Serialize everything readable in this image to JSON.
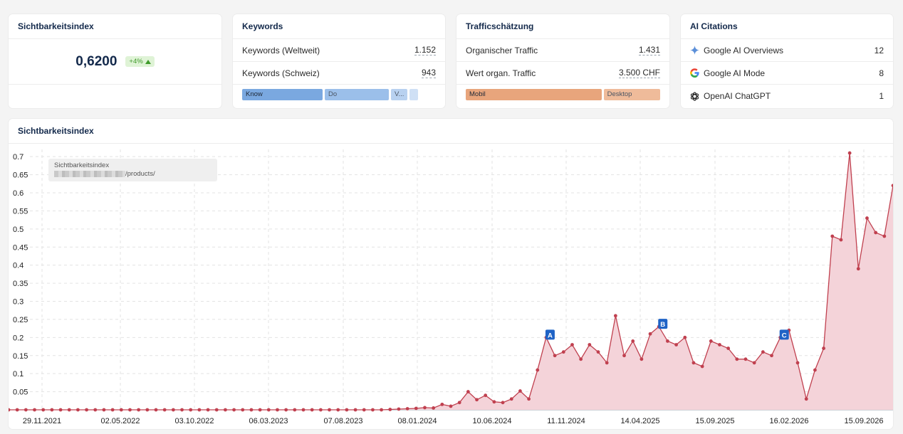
{
  "cards": {
    "visibility": {
      "title": "Sichtbarkeitsindex",
      "value": "0,6200",
      "change": "+4%"
    },
    "keywords": {
      "title": "Keywords",
      "rows": [
        {
          "label": "Keywords (Weltweit)",
          "value": "1.152"
        },
        {
          "label": "Keywords (Schweiz)",
          "value": "943"
        }
      ],
      "intents": [
        {
          "label": "Know",
          "share": 0.415,
          "color": "#7aa8e0"
        },
        {
          "label": "Do",
          "share": 0.33,
          "color": "#9bbfea"
        },
        {
          "label": "V...",
          "share": 0.085,
          "color": "#b8d1f0"
        },
        {
          "label": "",
          "share": 0.045,
          "color": "#cfe0f5"
        }
      ]
    },
    "traffic": {
      "title": "Trafficschätzung",
      "rows": [
        {
          "label": "Organischer Traffic",
          "value": "1.431"
        },
        {
          "label": "Wert organ. Traffic",
          "value": "3.500 CHF"
        }
      ],
      "devices": [
        {
          "label": "Mobil",
          "share": 0.705,
          "color": "#e8a57c"
        },
        {
          "label": "Desktop",
          "share": 0.295,
          "color": "#efbb9a"
        }
      ]
    },
    "ai": {
      "title": "AI Citations",
      "rows": [
        {
          "label": "Google AI Overviews",
          "value": "12",
          "icon": "sparkle-icon"
        },
        {
          "label": "Google AI Mode",
          "value": "8",
          "icon": "google-icon"
        },
        {
          "label": "OpenAI ChatGPT",
          "value": "1",
          "icon": "openai-icon"
        }
      ]
    }
  },
  "chart_section": {
    "title": "Sichtbarkeitsindex",
    "tooltip_title": "Sichtbarkeitsindex",
    "tooltip_url_suffix": "/products/"
  },
  "chart_data": {
    "type": "area",
    "title": "Sichtbarkeitsindex",
    "ylim": [
      0,
      0.72
    ],
    "yticks": [
      0.05,
      0.1,
      0.15,
      0.2,
      0.25,
      0.3,
      0.35,
      0.4,
      0.45,
      0.5,
      0.55,
      0.6,
      0.65,
      0.7
    ],
    "xticks": [
      "29.11.2021",
      "02.05.2022",
      "03.10.2022",
      "06.03.2023",
      "07.08.2023",
      "08.01.2024",
      "10.06.2024",
      "11.11.2024",
      "14.04.2025",
      "15.09.2025",
      "16.02.2026",
      "15.09.2026"
    ],
    "grid": true,
    "color": "#c0404f",
    "fill": "#f4d3d9",
    "markers": [
      {
        "label": "A",
        "index": 62
      },
      {
        "label": "B",
        "index": 75
      },
      {
        "label": "C",
        "index": 89
      }
    ],
    "values": [
      0,
      0,
      0,
      0,
      0,
      0,
      0,
      0,
      0,
      0,
      0,
      0,
      0,
      0,
      0,
      0,
      0,
      0,
      0,
      0,
      0,
      0,
      0,
      0,
      0,
      0,
      0,
      0,
      0,
      0,
      0,
      0,
      0,
      0,
      0,
      0,
      0,
      0,
      0,
      0,
      0,
      0,
      0,
      0,
      0.001,
      0.002,
      0.003,
      0.004,
      0.006,
      0.005,
      0.015,
      0.01,
      0.02,
      0.05,
      0.028,
      0.04,
      0.022,
      0.02,
      0.03,
      0.052,
      0.03,
      0.11,
      0.2,
      0.15,
      0.16,
      0.18,
      0.14,
      0.18,
      0.16,
      0.13,
      0.26,
      0.15,
      0.19,
      0.14,
      0.21,
      0.23,
      0.19,
      0.18,
      0.2,
      0.13,
      0.12,
      0.19,
      0.18,
      0.17,
      0.14,
      0.14,
      0.13,
      0.16,
      0.15,
      0.2,
      0.22,
      0.13,
      0.03,
      0.11,
      0.17,
      0.48,
      0.47,
      0.71,
      0.39,
      0.53,
      0.49,
      0.48,
      0.62
    ]
  }
}
